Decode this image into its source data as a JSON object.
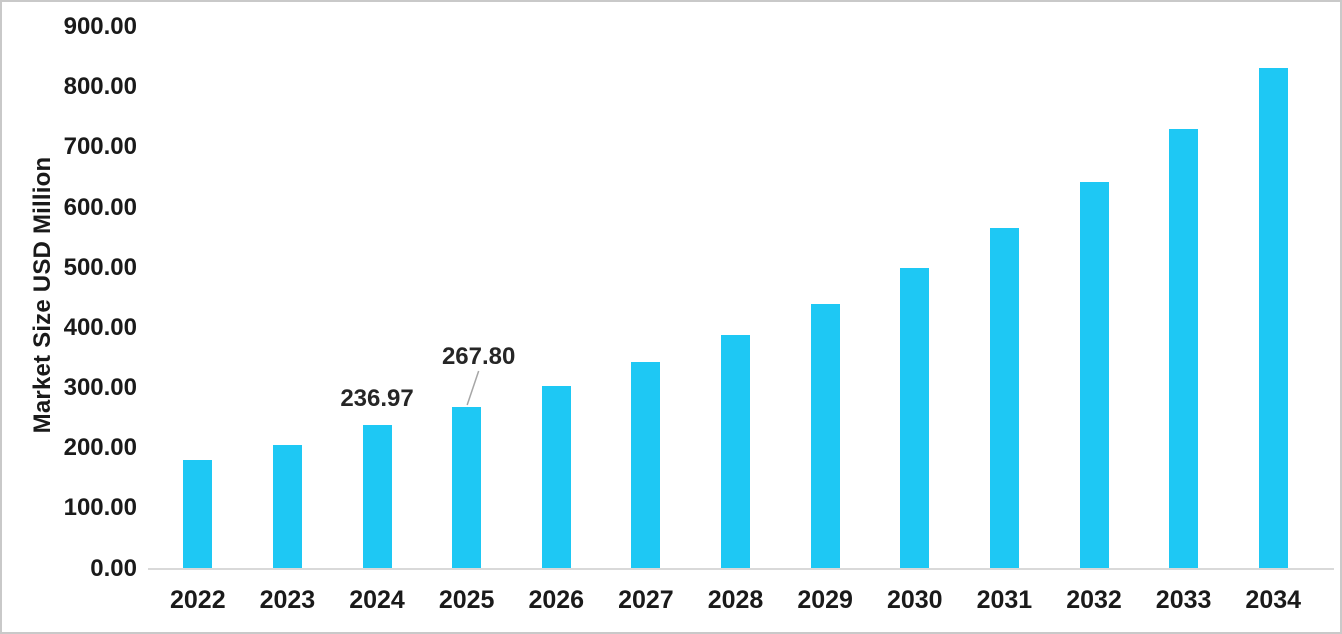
{
  "chart_data": {
    "type": "bar",
    "title": "",
    "xlabel": "",
    "ylabel": "Market Size USD Million",
    "categories": [
      "2022",
      "2023",
      "2024",
      "2025",
      "2026",
      "2027",
      "2028",
      "2029",
      "2030",
      "2031",
      "2032",
      "2033",
      "2034"
    ],
    "series": [
      {
        "name": "Market Size USD Million",
        "values": [
          179,
          205,
          236.97,
          267.8,
          302,
          343,
          387,
          439,
          498,
          566,
          641,
          730,
          832
        ]
      }
    ],
    "labeled_points": [
      {
        "category": "2024",
        "text": "236.97",
        "leader_line": false
      },
      {
        "category": "2025",
        "text": "267.80",
        "leader_line": true
      }
    ],
    "ylim": [
      0,
      900
    ],
    "ytick_step": 100,
    "ytick_labels": [
      "0.00",
      "100.00",
      "200.00",
      "300.00",
      "400.00",
      "500.00",
      "600.00",
      "700.00",
      "800.00",
      "900.00"
    ],
    "grid": false,
    "legend": "none",
    "colors": {
      "bar": "#1EC8F4",
      "axis_line": "#d9d9d9",
      "leader_line": "#a6a6a6",
      "text": "#1a1a1a",
      "background": "#ffffff",
      "frame_border": "#c9c9c9"
    }
  }
}
